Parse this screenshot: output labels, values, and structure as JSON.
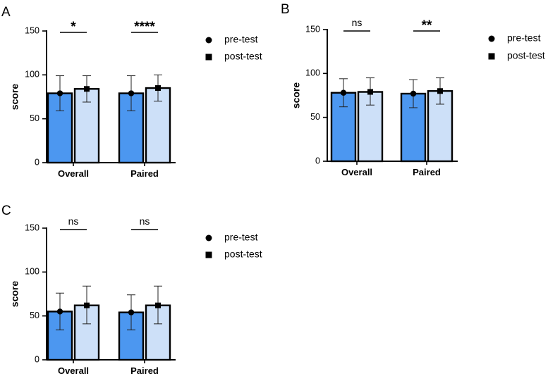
{
  "chart_data": [
    {
      "panel": "A",
      "type": "bar",
      "ylabel": "score",
      "ylim": [
        0,
        150
      ],
      "yticks": [
        0,
        50,
        100,
        150
      ],
      "categories": [
        "Overall",
        "Paired"
      ],
      "series": [
        {
          "name": "pre-test",
          "marker": "circle",
          "color": "#4c97f0",
          "values": [
            79,
            79
          ],
          "error_low": [
            59,
            59
          ],
          "error_high": [
            99,
            99
          ]
        },
        {
          "name": "post-test",
          "marker": "square",
          "color": "#cde0f8",
          "values": [
            84,
            85
          ],
          "error_low": [
            69,
            70
          ],
          "error_high": [
            99,
            100
          ]
        }
      ],
      "significance": [
        "*",
        "****"
      ],
      "legend": [
        "pre-test",
        "post-test"
      ]
    },
    {
      "panel": "B",
      "type": "bar",
      "ylabel": "score",
      "ylim": [
        0,
        150
      ],
      "yticks": [
        0,
        50,
        100,
        150
      ],
      "categories": [
        "Overall",
        "Paired"
      ],
      "series": [
        {
          "name": "pre-test",
          "marker": "circle",
          "color": "#4c97f0",
          "values": [
            78,
            77
          ],
          "error_low": [
            62,
            61
          ],
          "error_high": [
            94,
            93
          ]
        },
        {
          "name": "post-test",
          "marker": "square",
          "color": "#cde0f8",
          "values": [
            79,
            80
          ],
          "error_low": [
            64,
            65
          ],
          "error_high": [
            95,
            95
          ]
        }
      ],
      "significance": [
        "ns",
        "**"
      ],
      "legend": [
        "pre-test",
        "post-test"
      ]
    },
    {
      "panel": "C",
      "type": "bar",
      "ylabel": "score",
      "ylim": [
        0,
        150
      ],
      "yticks": [
        0,
        50,
        100,
        150
      ],
      "categories": [
        "Overall",
        "Paired"
      ],
      "series": [
        {
          "name": "pre-test",
          "marker": "circle",
          "color": "#4c97f0",
          "values": [
            55,
            54
          ],
          "error_low": [
            34,
            34
          ],
          "error_high": [
            76,
            74
          ]
        },
        {
          "name": "post-test",
          "marker": "square",
          "color": "#cde0f8",
          "values": [
            62,
            62
          ],
          "error_low": [
            41,
            41
          ],
          "error_high": [
            84,
            84
          ]
        }
      ],
      "significance": [
        "ns",
        "ns"
      ],
      "legend": [
        "pre-test",
        "post-test"
      ]
    }
  ]
}
